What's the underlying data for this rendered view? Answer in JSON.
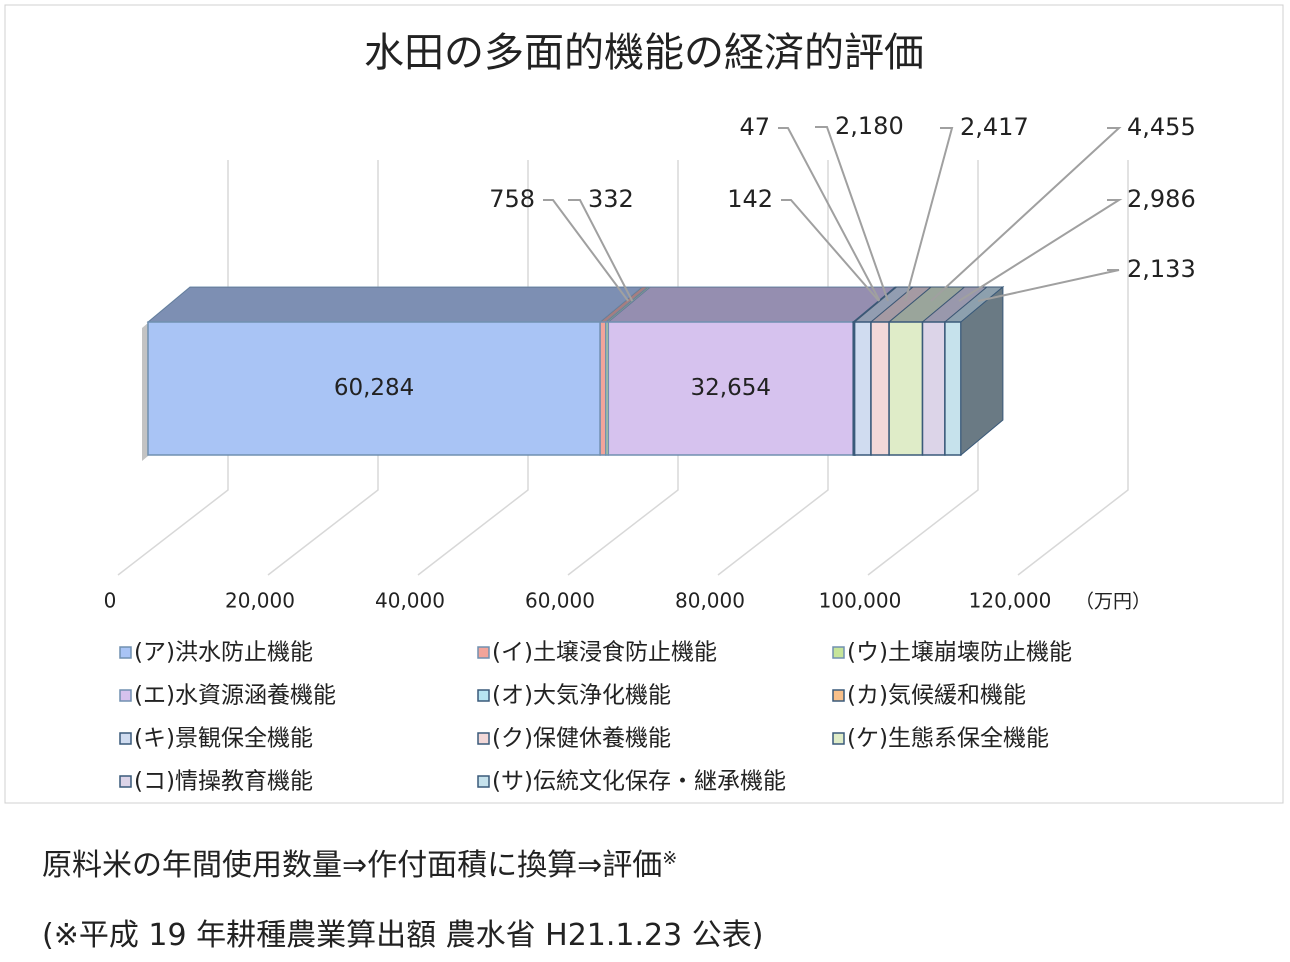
{
  "chart_data": {
    "type": "bar",
    "title": "水田の多面的機能の経済的評価",
    "unit_label": "（万円）",
    "xlim": [
      0,
      120000
    ],
    "xticks": [
      0,
      {
        "value": 20000,
        "label": "20,000"
      },
      {
        "value": 40000,
        "label": "40,000"
      },
      {
        "value": 60000,
        "label": "60,000"
      },
      {
        "value": 80000,
        "label": "80,000"
      },
      {
        "value": 100000,
        "label": "100,000"
      },
      {
        "value": 120000,
        "label": "120,000"
      }
    ],
    "grid": true,
    "series": [
      {
        "name": "(ア)洪水防止機能",
        "color": "#a9c4f5",
        "values": [
          60284
        ],
        "value_labels": [
          "60,284"
        ]
      },
      {
        "name": "(イ)土壌浸食防止機能",
        "color": "#f2a49a",
        "values": [
          758
        ],
        "value_labels": [
          "758"
        ]
      },
      {
        "name": "(ウ)土壌崩壊防止機能",
        "color": "#c6e59a",
        "values": [
          332
        ],
        "value_labels": [
          "332"
        ]
      },
      {
        "name": "(エ)水資源涵養機能",
        "color": "#d6c2ee",
        "values": [
          32654
        ],
        "value_labels": [
          "32,654"
        ]
      },
      {
        "name": "(オ)大気浄化機能",
        "color": "#b6e4f2",
        "values": [
          142
        ],
        "value_labels": [
          "142"
        ]
      },
      {
        "name": "(カ)気候緩和機能",
        "color": "#f8c08a",
        "values": [
          47
        ],
        "value_labels": [
          "47"
        ]
      },
      {
        "name": "(キ)景観保全機能",
        "color": "#d0dcf0",
        "values": [
          2180
        ],
        "value_labels": [
          "2,180"
        ]
      },
      {
        "name": "(ク)保健休養機能",
        "color": "#f2d8d8",
        "values": [
          2417
        ],
        "value_labels": [
          "2,417"
        ]
      },
      {
        "name": "(ケ)生態系保全機能",
        "color": "#dfecc8",
        "values": [
          4455
        ],
        "value_labels": [
          "4,455"
        ]
      },
      {
        "name": "(コ)情操教育機能",
        "color": "#dcd4e8",
        "values": [
          2986
        ],
        "value_labels": [
          "2,986"
        ]
      },
      {
        "name": "(サ)伝統文化保存・継承機能",
        "color": "#c6e2ec",
        "values": [
          2133
        ],
        "value_labels": [
          "2,133"
        ]
      }
    ]
  },
  "notes": {
    "line1": "原料米の年間使用数量⇒作付面積に換算⇒評価",
    "line1_mark": "※",
    "line2": "(※平成 19 年耕種農業算出額  農水省 H21.1.23 公表)"
  }
}
